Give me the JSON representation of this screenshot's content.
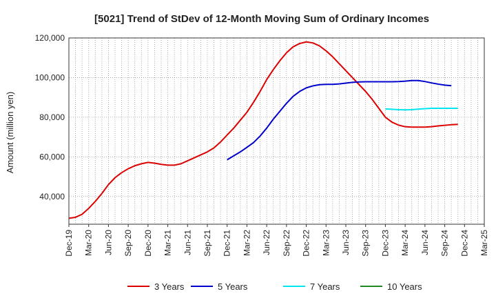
{
  "chart_data": {
    "type": "line",
    "title": "[5021]  Trend of StDev of 12-Month Moving Sum of Ordinary Incomes",
    "xlabel": "",
    "ylabel": "Amount (million yen)",
    "ylim": [
      26000,
      120000
    ],
    "yticks": [
      40000,
      60000,
      80000,
      100000,
      120000
    ],
    "ytick_labels": [
      "40,000",
      "60,000",
      "80,000",
      "100,000",
      "120,000"
    ],
    "x_tick_labels": [
      "Dec-19",
      "Mar-20",
      "Jun-20",
      "Sep-20",
      "Dec-20",
      "Mar-21",
      "Jun-21",
      "Sep-21",
      "Dec-21",
      "Mar-22",
      "Jun-22",
      "Sep-22",
      "Dec-22",
      "Mar-23",
      "Jun-23",
      "Sep-23",
      "Dec-23",
      "Mar-24",
      "Jun-24",
      "Sep-24",
      "Dec-24",
      "Mar-25"
    ],
    "x_start": "Dec-19",
    "n_months": 63,
    "grid": true,
    "legend_position": "bottom",
    "series": [
      {
        "name": "3 Years",
        "color": "#dd0000",
        "start_index": 0,
        "values": [
          29000,
          29500,
          31000,
          34000,
          37500,
          41500,
          46000,
          49500,
          52000,
          54000,
          55500,
          56500,
          57200,
          56800,
          56200,
          55800,
          55800,
          56500,
          58000,
          59500,
          61000,
          62500,
          64500,
          67500,
          71000,
          74500,
          78500,
          82500,
          87500,
          93000,
          99000,
          104000,
          108500,
          112500,
          115500,
          117200,
          118000,
          117500,
          116000,
          113500,
          110500,
          107000,
          103500,
          100000,
          96500,
          93000,
          89000,
          84500,
          80000,
          77500,
          76000,
          75200,
          75000,
          75000,
          75000,
          75200,
          75600,
          75900,
          76200,
          76400
        ]
      },
      {
        "name": "5 Years",
        "color": "#0000cc",
        "start_index": 24,
        "values": [
          58500,
          60500,
          62500,
          64800,
          67200,
          70500,
          74500,
          79000,
          83000,
          87000,
          90500,
          93000,
          94800,
          95800,
          96400,
          96600,
          96600,
          96800,
          97200,
          97600,
          97800,
          97900,
          97900,
          97900,
          97900,
          97900,
          98000,
          98200,
          98500,
          98500,
          98000,
          97300,
          96700,
          96200,
          95900
        ]
      },
      {
        "name": "7 Years",
        "color": "#00e5ee",
        "start_index": 48,
        "values": [
          84200,
          84000,
          83800,
          83700,
          83800,
          84100,
          84300,
          84500,
          84500,
          84500,
          84500,
          84500
        ]
      },
      {
        "name": "10 Years",
        "color": "#228822",
        "start_index": 63,
        "values": []
      }
    ]
  }
}
